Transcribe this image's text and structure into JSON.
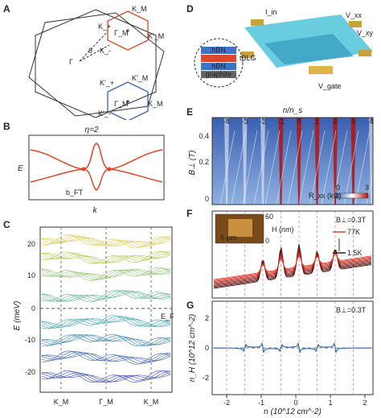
{
  "figure": {
    "panel_labels": [
      "A",
      "B",
      "C",
      "D",
      "E",
      "F",
      "G"
    ],
    "panelA": {
      "labels": [
        "K_M",
        "K'_M",
        "Γ_M",
        "K_+",
        "K'_+",
        "K_-",
        "K'_-",
        "Γ",
        "θ",
        "Γ_M",
        "K'_M",
        "K_M"
      ],
      "colors": {
        "top": "#d9482b",
        "bottom": "#3a5fb0",
        "outline": "#333333"
      }
    },
    "panelB": {
      "title": "η=2",
      "ylabel": "E",
      "xlabel": "k",
      "annotation": "b_FT",
      "color": "#d9482b"
    },
    "panelC": {
      "ylabel": "E (meV)",
      "yticks": [
        "20",
        "10",
        "0",
        "-10",
        "-20"
      ],
      "xticks": [
        "K_M",
        "Γ_M",
        "K_M"
      ],
      "fermi_label": "E_F"
    },
    "panelD": {
      "labels": [
        "I_in",
        "V_xx",
        "V_xy",
        "V_gate",
        "hBN",
        "tBLG",
        "hBN",
        "graphite"
      ],
      "colors": {
        "device": "#4fc3d9",
        "gold": "#c9a23a",
        "sample": "#e0b24a"
      }
    },
    "panelE": {
      "top_axis_label": "n/n_s",
      "top_ticks": [
        "-4",
        "-3",
        "-2",
        "-1",
        "0",
        "1",
        "2",
        "3",
        "4"
      ],
      "ylabel": "B⊥ (T)",
      "yticks": [
        "0.4",
        "0.2",
        "0"
      ],
      "colorbar_label": "R_xx (kΩ)",
      "colorbar_min": "0",
      "colorbar_max": "3"
    },
    "panelF": {
      "inset_label": "5 μm",
      "inset_scale_max": "60",
      "inset_scale_min": "0",
      "inset_axis": "H (nm)",
      "field": "B⊥=0.3T",
      "temp_high": "77K",
      "temp_low": "1.5K"
    },
    "panelG": {
      "ylabel": "n_H (10^12 cm^-2)",
      "yticks": [
        "2",
        "0",
        "-2"
      ],
      "field": "B⊥=0.3T",
      "xlabel": "n (10^12 cm^-2)",
      "xticks": [
        "-2",
        "-1",
        "0",
        "1",
        "2"
      ]
    }
  }
}
